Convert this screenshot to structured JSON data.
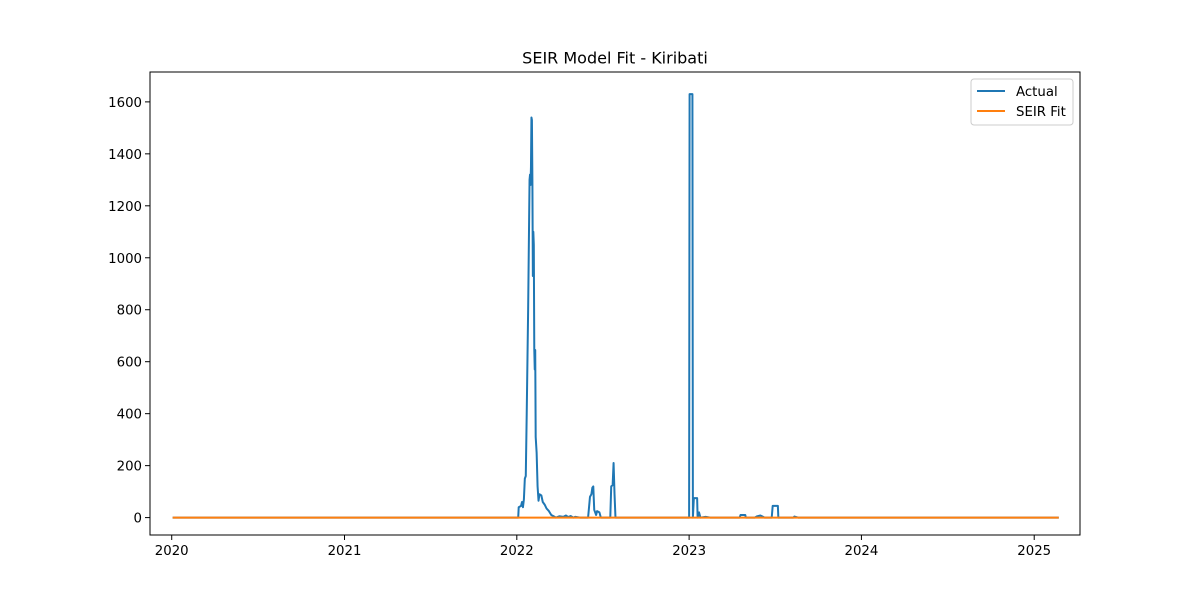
{
  "chart_data": {
    "type": "line",
    "title": "SEIR Model Fit - Kiribati",
    "xlabel": "",
    "ylabel": "",
    "x_type": "date",
    "xlim": [
      "2019-11-16",
      "2025-04-08"
    ],
    "ylim": [
      -67,
      1715
    ],
    "x_ticks": [
      "2020",
      "2021",
      "2022",
      "2023",
      "2024",
      "2025"
    ],
    "y_ticks": [
      "0",
      "200",
      "400",
      "600",
      "800",
      "1000",
      "1200",
      "1400",
      "1600"
    ],
    "grid": false,
    "legend_position": "top-right",
    "series": [
      {
        "name": "Actual",
        "color": "#1f77b4",
        "points": [
          [
            "2020-01-03",
            0
          ],
          [
            "2022-01-04",
            0
          ],
          [
            "2022-01-05",
            40
          ],
          [
            "2022-01-10",
            45
          ],
          [
            "2022-01-12",
            60
          ],
          [
            "2022-01-14",
            40
          ],
          [
            "2022-01-16",
            70
          ],
          [
            "2022-01-18",
            150
          ],
          [
            "2022-01-20",
            160
          ],
          [
            "2022-01-22",
            400
          ],
          [
            "2022-01-25",
            800
          ],
          [
            "2022-01-28",
            1300
          ],
          [
            "2022-01-29",
            1320
          ],
          [
            "2022-01-30",
            1280
          ],
          [
            "2022-01-31",
            1350
          ],
          [
            "2022-02-01",
            1540
          ],
          [
            "2022-02-02",
            1530
          ],
          [
            "2022-02-03",
            1300
          ],
          [
            "2022-02-04",
            930
          ],
          [
            "2022-02-05",
            1100
          ],
          [
            "2022-02-06",
            1050
          ],
          [
            "2022-02-07",
            650
          ],
          [
            "2022-02-08",
            570
          ],
          [
            "2022-02-09",
            645
          ],
          [
            "2022-02-10",
            310
          ],
          [
            "2022-02-12",
            250
          ],
          [
            "2022-02-14",
            120
          ],
          [
            "2022-02-16",
            65
          ],
          [
            "2022-02-18",
            90
          ],
          [
            "2022-02-22",
            85
          ],
          [
            "2022-02-25",
            60
          ],
          [
            "2022-03-01",
            50
          ],
          [
            "2022-03-05",
            35
          ],
          [
            "2022-03-10",
            25
          ],
          [
            "2022-03-15",
            10
          ],
          [
            "2022-03-20",
            5
          ],
          [
            "2022-03-25",
            0
          ],
          [
            "2022-04-01",
            5
          ],
          [
            "2022-04-10",
            3
          ],
          [
            "2022-04-15",
            8
          ],
          [
            "2022-04-20",
            2
          ],
          [
            "2022-04-25",
            6
          ],
          [
            "2022-05-01",
            0
          ],
          [
            "2022-05-05",
            3
          ],
          [
            "2022-05-15",
            0
          ],
          [
            "2022-06-01",
            0
          ],
          [
            "2022-06-05",
            80
          ],
          [
            "2022-06-08",
            90
          ],
          [
            "2022-06-10",
            115
          ],
          [
            "2022-06-12",
            120
          ],
          [
            "2022-06-14",
            30
          ],
          [
            "2022-06-18",
            10
          ],
          [
            "2022-06-20",
            25
          ],
          [
            "2022-06-25",
            20
          ],
          [
            "2022-06-28",
            0
          ],
          [
            "2022-07-18",
            0
          ],
          [
            "2022-07-20",
            120
          ],
          [
            "2022-07-23",
            125
          ],
          [
            "2022-07-25",
            210
          ],
          [
            "2022-07-27",
            90
          ],
          [
            "2022-07-29",
            0
          ],
          [
            "2023-01-01",
            0
          ],
          [
            "2023-01-02",
            1630
          ],
          [
            "2023-01-08",
            1630
          ],
          [
            "2023-01-09",
            0
          ],
          [
            "2023-01-11",
            75
          ],
          [
            "2023-01-18",
            75
          ],
          [
            "2023-01-19",
            0
          ],
          [
            "2023-01-22",
            20
          ],
          [
            "2023-01-25",
            0
          ],
          [
            "2023-02-05",
            3
          ],
          [
            "2023-02-15",
            0
          ],
          [
            "2023-04-18",
            0
          ],
          [
            "2023-04-20",
            10
          ],
          [
            "2023-04-30",
            10
          ],
          [
            "2023-05-01",
            0
          ],
          [
            "2023-05-20",
            0
          ],
          [
            "2023-05-25",
            5
          ],
          [
            "2023-06-01",
            8
          ],
          [
            "2023-06-10",
            0
          ],
          [
            "2023-06-25",
            0
          ],
          [
            "2023-06-27",
            45
          ],
          [
            "2023-07-08",
            45
          ],
          [
            "2023-07-09",
            0
          ],
          [
            "2023-08-10",
            0
          ],
          [
            "2023-08-12",
            4
          ],
          [
            "2023-08-20",
            0
          ],
          [
            "2025-02-22",
            0
          ]
        ]
      },
      {
        "name": "SEIR Fit",
        "color": "#ff7f0e",
        "points": [
          [
            "2020-01-03",
            0
          ],
          [
            "2025-02-22",
            0
          ]
        ]
      }
    ]
  }
}
